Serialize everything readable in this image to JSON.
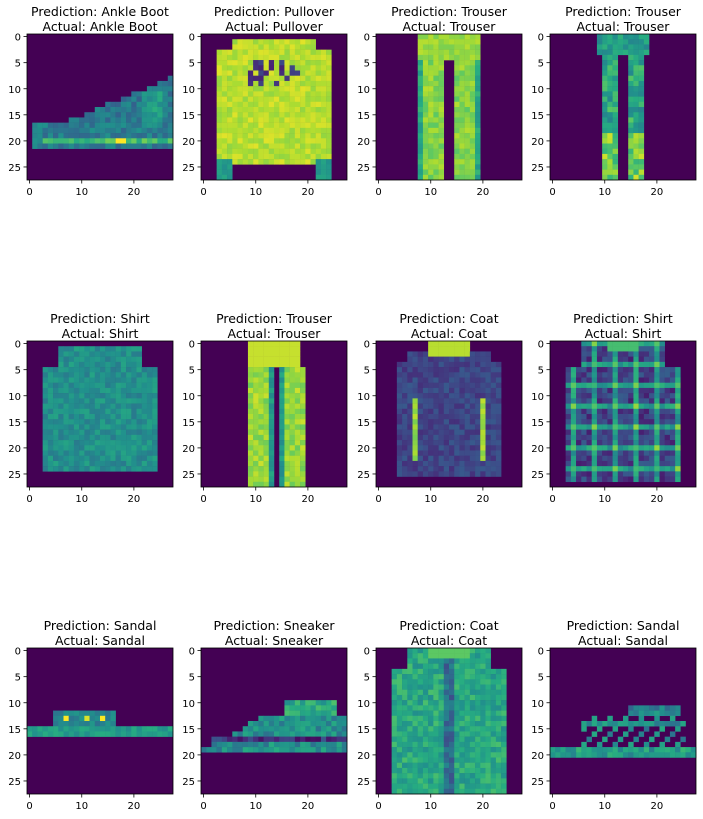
{
  "figure": {
    "background": "#ffffff",
    "axes_frame_color": "#000000",
    "image_colormap": "viridis"
  },
  "chart_data": [
    {
      "type": "heatmap",
      "title_line1": "Prediction: Ankle Boot",
      "title_line2": "Actual: Ankle Boot",
      "xticks": [
        0,
        10,
        20
      ],
      "yticks": [
        0,
        5,
        10,
        15,
        20,
        25
      ],
      "xlim": [
        -0.5,
        27.5
      ],
      "ylim": [
        27.5,
        -0.5
      ],
      "image_size": [
        28,
        28
      ],
      "shape": "ankle-boot"
    },
    {
      "type": "heatmap",
      "title_line1": "Prediction: Pullover",
      "title_line2": "Actual: Pullover",
      "xticks": [
        0,
        10,
        20
      ],
      "yticks": [
        0,
        5,
        10,
        15,
        20,
        25
      ],
      "xlim": [
        -0.5,
        27.5
      ],
      "ylim": [
        27.5,
        -0.5
      ],
      "image_size": [
        28,
        28
      ],
      "shape": "pullover"
    },
    {
      "type": "heatmap",
      "title_line1": "Prediction: Trouser",
      "title_line2": "Actual: Trouser",
      "xticks": [
        0,
        10,
        20
      ],
      "yticks": [
        0,
        5,
        10,
        15,
        20,
        25
      ],
      "xlim": [
        -0.5,
        27.5
      ],
      "ylim": [
        27.5,
        -0.5
      ],
      "image_size": [
        28,
        28
      ],
      "shape": "trouser-wide"
    },
    {
      "type": "heatmap",
      "title_line1": "Prediction: Trouser",
      "title_line2": "Actual: Trouser",
      "xticks": [
        0,
        10,
        20
      ],
      "yticks": [
        0,
        5,
        10,
        15,
        20,
        25
      ],
      "xlim": [
        -0.5,
        27.5
      ],
      "ylim": [
        27.5,
        -0.5
      ],
      "image_size": [
        28,
        28
      ],
      "shape": "trouser-slim"
    },
    {
      "type": "heatmap",
      "title_line1": "Prediction: Shirt",
      "title_line2": "Actual: Shirt",
      "xticks": [
        0,
        10,
        20
      ],
      "yticks": [
        0,
        5,
        10,
        15,
        20,
        25
      ],
      "xlim": [
        -0.5,
        27.5
      ],
      "ylim": [
        27.5,
        -0.5
      ],
      "image_size": [
        28,
        28
      ],
      "shape": "shirt-plain"
    },
    {
      "type": "heatmap",
      "title_line1": "Prediction: Trouser",
      "title_line2": "Actual: Trouser",
      "xticks": [
        0,
        10,
        20
      ],
      "yticks": [
        0,
        5,
        10,
        15,
        20,
        25
      ],
      "xlim": [
        -0.5,
        27.5
      ],
      "ylim": [
        27.5,
        -0.5
      ],
      "image_size": [
        28,
        28
      ],
      "shape": "trouser-bright"
    },
    {
      "type": "heatmap",
      "title_line1": "Prediction: Coat",
      "title_line2": "Actual: Coat",
      "xticks": [
        0,
        10,
        20
      ],
      "yticks": [
        0,
        5,
        10,
        15,
        20,
        25
      ],
      "xlim": [
        -0.5,
        27.5
      ],
      "ylim": [
        27.5,
        -0.5
      ],
      "image_size": [
        28,
        28
      ],
      "shape": "coat-dark"
    },
    {
      "type": "heatmap",
      "title_line1": "Prediction: Shirt",
      "title_line2": "Actual: Shirt",
      "xticks": [
        0,
        10,
        20
      ],
      "yticks": [
        0,
        5,
        10,
        15,
        20,
        25
      ],
      "xlim": [
        -0.5,
        27.5
      ],
      "ylim": [
        27.5,
        -0.5
      ],
      "image_size": [
        28,
        28
      ],
      "shape": "shirt-plaid"
    },
    {
      "type": "heatmap",
      "title_line1": "Prediction: Sandal",
      "title_line2": "Actual: Sandal",
      "xticks": [
        0,
        10,
        20
      ],
      "yticks": [
        0,
        5,
        10,
        15,
        20,
        25
      ],
      "xlim": [
        -0.5,
        27.5
      ],
      "ylim": [
        27.5,
        -0.5
      ],
      "image_size": [
        28,
        28
      ],
      "shape": "sandal-flat"
    },
    {
      "type": "heatmap",
      "title_line1": "Prediction: Sneaker",
      "title_line2": "Actual: Sneaker",
      "xticks": [
        0,
        10,
        20
      ],
      "yticks": [
        0,
        5,
        10,
        15,
        20,
        25
      ],
      "xlim": [
        -0.5,
        27.5
      ],
      "ylim": [
        27.5,
        -0.5
      ],
      "image_size": [
        28,
        28
      ],
      "shape": "sneaker"
    },
    {
      "type": "heatmap",
      "title_line1": "Prediction: Coat",
      "title_line2": "Actual: Coat",
      "xticks": [
        0,
        10,
        20
      ],
      "yticks": [
        0,
        5,
        10,
        15,
        20,
        25
      ],
      "xlim": [
        -0.5,
        27.5
      ],
      "ylim": [
        27.5,
        -0.5
      ],
      "image_size": [
        28,
        28
      ],
      "shape": "coat-light"
    },
    {
      "type": "heatmap",
      "title_line1": "Prediction: Sandal",
      "title_line2": "Actual: Sandal",
      "xticks": [
        0,
        10,
        20
      ],
      "yticks": [
        0,
        5,
        10,
        15,
        20,
        25
      ],
      "xlim": [
        -0.5,
        27.5
      ],
      "ylim": [
        27.5,
        -0.5
      ],
      "image_size": [
        28,
        28
      ],
      "shape": "sandal-strappy"
    }
  ]
}
